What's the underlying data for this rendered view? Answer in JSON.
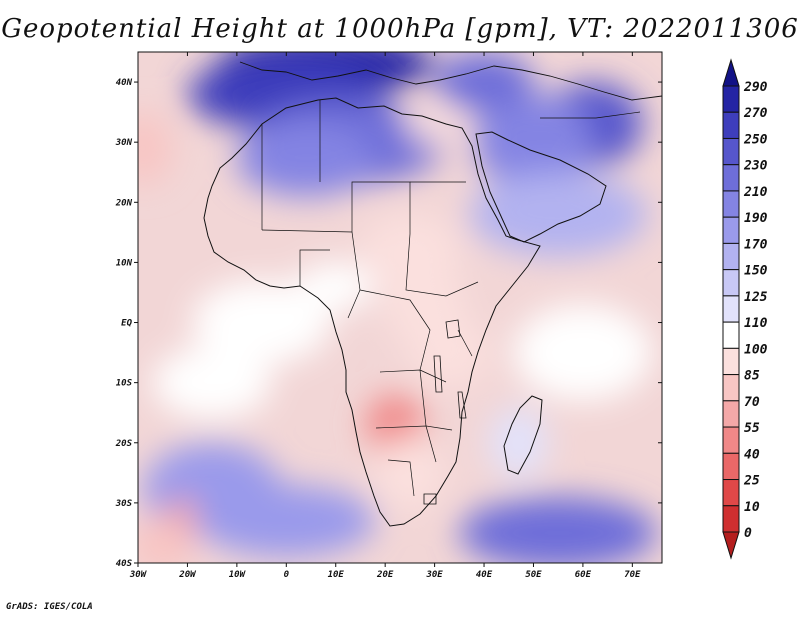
{
  "title": "Geopotential Height at 1000hPa [gpm], VT: 2022011306",
  "footer": "GrADS: IGES/COLA",
  "map": {
    "projection": "latlon",
    "lon_range": [
      -30,
      76
    ],
    "lat_range": [
      -40,
      45
    ],
    "lon_ticks": [
      {
        "value": -30,
        "label": "30W"
      },
      {
        "value": -20,
        "label": "20W"
      },
      {
        "value": -10,
        "label": "10W"
      },
      {
        "value": 0,
        "label": "0"
      },
      {
        "value": 10,
        "label": "10E"
      },
      {
        "value": 20,
        "label": "20E"
      },
      {
        "value": 30,
        "label": "30E"
      },
      {
        "value": 40,
        "label": "40E"
      },
      {
        "value": 50,
        "label": "50E"
      },
      {
        "value": 60,
        "label": "60E"
      },
      {
        "value": 70,
        "label": "70E"
      }
    ],
    "lat_ticks": [
      {
        "value": 40,
        "label": "40N"
      },
      {
        "value": 30,
        "label": "30N"
      },
      {
        "value": 20,
        "label": "20N"
      },
      {
        "value": 10,
        "label": "10N"
      },
      {
        "value": 0,
        "label": "EQ"
      },
      {
        "value": -10,
        "label": "10S"
      },
      {
        "value": -20,
        "label": "20S"
      },
      {
        "value": -30,
        "label": "30S"
      },
      {
        "value": -40,
        "label": "40S"
      }
    ],
    "fields": [
      {
        "lon": 8,
        "lat": 43,
        "value": 285,
        "lon_r": 22,
        "lat_r": 5
      },
      {
        "lon": 0,
        "lat": 38,
        "value": 255,
        "lon_r": 20,
        "lat_r": 6
      },
      {
        "lon": 12,
        "lat": 30,
        "value": 215,
        "lon_r": 20,
        "lat_r": 7
      },
      {
        "lon": 4,
        "lat": 27,
        "value": 205,
        "lon_r": 14,
        "lat_r": 6
      },
      {
        "lon": 62,
        "lat": 33,
        "value": 235,
        "lon_r": 10,
        "lat_r": 7
      },
      {
        "lon": 50,
        "lat": 30,
        "value": 195,
        "lon_r": 12,
        "lat_r": 8
      },
      {
        "lon": 40,
        "lat": 40,
        "value": 210,
        "lon_r": 10,
        "lat_r": 5
      },
      {
        "lon": 55,
        "lat": 18,
        "value": 160,
        "lon_r": 18,
        "lat_r": 7
      },
      {
        "lon": 30,
        "lat": 33,
        "value": 95,
        "lon_r": 6,
        "lat_r": 3
      },
      {
        "lon": -29,
        "lat": 29,
        "value": 75,
        "lon_r": 6,
        "lat_r": 6
      },
      {
        "lon": 25,
        "lat": 12,
        "value": 85,
        "lon_r": 10,
        "lat_r": 6
      },
      {
        "lon": 28,
        "lat": 3,
        "value": 90,
        "lon_r": 8,
        "lat_r": 7
      },
      {
        "lon": 33,
        "lat": -5,
        "value": 95,
        "lon_r": 8,
        "lat_r": 6
      },
      {
        "lon": 22,
        "lat": -17,
        "value": 40,
        "lon_r": 6,
        "lat_r": 5
      },
      {
        "lon": 25,
        "lat": -25,
        "value": 85,
        "lon_r": 7,
        "lat_r": 6
      },
      {
        "lon": 10,
        "lat": 6,
        "value": 108,
        "lon_r": 8,
        "lat_r": 4
      },
      {
        "lon": -5,
        "lat": 0,
        "value": 105,
        "lon_r": 14,
        "lat_r": 7
      },
      {
        "lon": -15,
        "lat": -10,
        "value": 108,
        "lon_r": 12,
        "lat_r": 6
      },
      {
        "lon": 60,
        "lat": -5,
        "value": 100,
        "lon_r": 14,
        "lat_r": 8
      },
      {
        "lon": 47,
        "lat": -20,
        "value": 120,
        "lon_r": 6,
        "lat_r": 6
      },
      {
        "lon": -15,
        "lat": -28,
        "value": 170,
        "lon_r": 14,
        "lat_r": 8
      },
      {
        "lon": 0,
        "lat": -33,
        "value": 180,
        "lon_r": 18,
        "lat_r": 6
      },
      {
        "lon": 55,
        "lat": -35,
        "value": 210,
        "lon_r": 20,
        "lat_r": 6
      },
      {
        "lon": -25,
        "lat": -37,
        "value": 75,
        "lon_r": 7,
        "lat_r": 5
      },
      {
        "lon": -21,
        "lat": -32,
        "value": 60,
        "lon_r": 3,
        "lat_r": 3
      }
    ]
  },
  "colorbar": {
    "levels": [
      0,
      10,
      25,
      40,
      55,
      70,
      85,
      100,
      110,
      125,
      150,
      170,
      190,
      210,
      230,
      250,
      270,
      290
    ],
    "labels": [
      "290",
      "270",
      "250",
      "230",
      "210",
      "190",
      "170",
      "150",
      "125",
      "110",
      "100",
      "85",
      "70",
      "55",
      "40",
      "25",
      "10",
      "0"
    ],
    "colors": [
      "#b41e1e",
      "#cf2f30",
      "#e04848",
      "#ea6868",
      "#f08888",
      "#f4a8a8",
      "#f8c6c4",
      "#fbe0de",
      "#ffffff",
      "#e2e2fb",
      "#c8c8f5",
      "#b2b2f0",
      "#9a9aeb",
      "#8484e3",
      "#6e6ed9",
      "#5656cc",
      "#3e3ebc",
      "#2424a4",
      "#121286"
    ],
    "background": "#f2d6d6"
  }
}
